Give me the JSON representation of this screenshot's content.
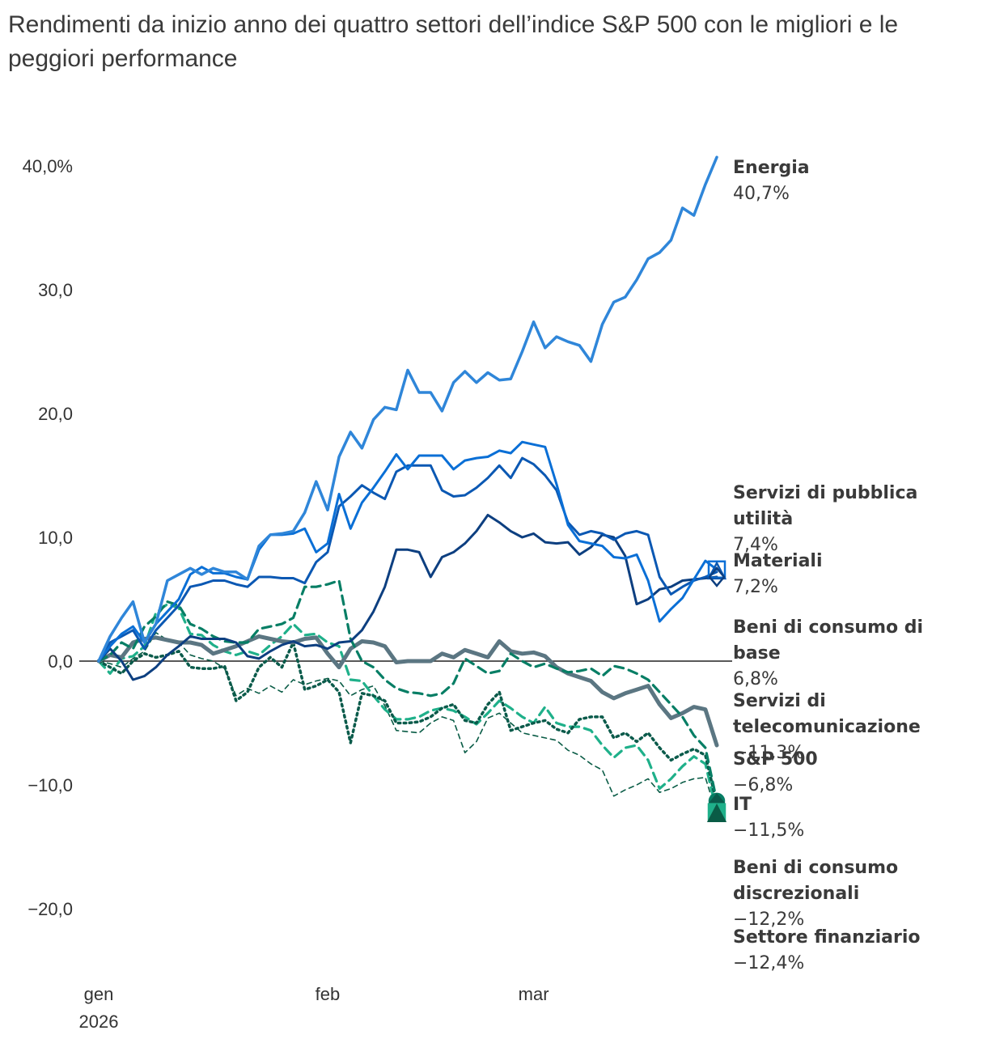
{
  "chart_data": {
    "type": "line",
    "title": "Rendimenti da inizio anno dei quattro settori dell’indice S&P 500 con le migliori e le peggiori performance",
    "xlabel": "",
    "ylabel": "",
    "x_ticks": [
      "gen",
      "feb",
      "mar"
    ],
    "x_year_label": "2026",
    "x_range": [
      0,
      54
    ],
    "x_tick_positions": [
      0,
      20,
      38
    ],
    "ylim": [
      -20,
      42
    ],
    "y_ticks": [
      40,
      30,
      20,
      10,
      0,
      -10,
      -20
    ],
    "y_tick_labels": [
      "40,0%",
      "30,0",
      "20,0",
      "10,0",
      "0,0",
      "−10,0",
      "−20,0"
    ],
    "zero_line": true,
    "grid": false,
    "legend": "direct labels at line ends (right)",
    "series": [
      {
        "name": "Energia",
        "end_label": "40,7%",
        "color": "#2f86d9",
        "dash": "solid",
        "width": 3.5,
        "values": [
          0,
          2,
          3.5,
          4.8,
          1.5,
          3,
          6.5,
          7,
          7.5,
          7,
          7.5,
          7.2,
          7.2,
          6.6,
          9.3,
          10.2,
          10.3,
          10.5,
          12,
          14.5,
          12.2,
          16.5,
          18.5,
          17.2,
          19.5,
          20.5,
          20.3,
          23.5,
          21.7,
          21.7,
          20.2,
          22.5,
          23.4,
          22.5,
          23.3,
          22.7,
          22.8,
          25,
          27.4,
          25.3,
          26.2,
          25.8,
          25.5,
          24.2,
          27.2,
          29,
          29.4,
          30.8,
          32.5,
          33,
          34,
          36.6,
          36,
          38.5,
          40.7
        ]
      },
      {
        "name": "Servizi di pubblica utilità",
        "end_label": "7,4%",
        "color": "#0a6fd6",
        "dash": "solid",
        "width": 3,
        "values": [
          0,
          1.2,
          2.2,
          2.8,
          1.5,
          3,
          4,
          5,
          7,
          7.6,
          7.1,
          7.1,
          6.8,
          6.6,
          9,
          10.2,
          10.2,
          10.3,
          10.7,
          8.8,
          9.5,
          13.5,
          10.7,
          12.8,
          14,
          15.3,
          16.7,
          15.5,
          16.6,
          16.6,
          16.6,
          15.5,
          16.2,
          16.4,
          16.5,
          17,
          16.8,
          17.7,
          17.5,
          17.3,
          14.3,
          11,
          9.7,
          9.5,
          9.3,
          8.4,
          8.3,
          8.6,
          6.5,
          3.2,
          4.2,
          5.1,
          6.6,
          8.1,
          7.4
        ]
      },
      {
        "name": "Materiali",
        "end_label": "7,2%",
        "color": "#0b58b3",
        "dash": "solid",
        "width": 3,
        "values": [
          0,
          1.5,
          2,
          2.5,
          1,
          2.5,
          3.5,
          4.5,
          6,
          6.2,
          6.5,
          6.5,
          6.2,
          6,
          6.8,
          6.8,
          6.7,
          6.7,
          6.3,
          8,
          8.8,
          12.5,
          13.3,
          14.2,
          13.6,
          13.1,
          15.3,
          15.8,
          15.8,
          15.8,
          13.8,
          13.3,
          13.4,
          14,
          14.8,
          15.8,
          14.8,
          16.4,
          15.9,
          15,
          13.8,
          11.2,
          10.2,
          10.5,
          10.3,
          9.8,
          10.3,
          10.5,
          10.2,
          6.8,
          5.4,
          6,
          6.5,
          6.8,
          7.2
        ]
      },
      {
        "name": "Beni di consumo di base",
        "end_label": "6,8%",
        "color": "#0d3f80",
        "dash": "solid",
        "width": 3,
        "values": [
          0,
          1,
          0,
          -1.5,
          -1.2,
          -0.5,
          0.5,
          1.2,
          2,
          1.8,
          1.8,
          1.8,
          1.5,
          0.4,
          0.2,
          0.8,
          1.3,
          1.6,
          1.2,
          1.3,
          1,
          1.5,
          1.6,
          2.5,
          4,
          6,
          9,
          9,
          8.8,
          6.8,
          8.4,
          8.8,
          9.5,
          10.5,
          11.8,
          11.2,
          10.5,
          10,
          10.3,
          9.6,
          9.5,
          9.6,
          8.6,
          9.2,
          10.2,
          10,
          8.5,
          4.6,
          5,
          5.8,
          6,
          6.5,
          6.6,
          6.7,
          6.8
        ]
      },
      {
        "name": "Servizi di telecomunicazione",
        "end_label": "−11,3%",
        "color": "#077e65",
        "dash": "dashed",
        "width": 3.2,
        "values": [
          0,
          0.5,
          1.5,
          1,
          2.8,
          3.6,
          4.8,
          4.5,
          3,
          2.6,
          2,
          1.6,
          1.5,
          1.5,
          2.6,
          2.8,
          3,
          3.5,
          6,
          6,
          6.2,
          6.5,
          1.8,
          0,
          -0.5,
          -1.5,
          -2.2,
          -2.5,
          -2.6,
          -2.8,
          -2.6,
          -1.8,
          0.2,
          -0.4,
          -1,
          -0.8,
          0.6,
          0,
          -0.5,
          -0.2,
          -0.6,
          -0.9,
          -0.8,
          -0.6,
          -1.2,
          -0.4,
          -0.6,
          -1,
          -1.5,
          -2.5,
          -3.5,
          -4.5,
          -6,
          -7,
          -11.3
        ]
      },
      {
        "name": "S&P 500",
        "end_label": "−6,8%",
        "color": "#5b7682",
        "dash": "solid",
        "width": 5,
        "values": [
          0,
          0.5,
          0.3,
          1.5,
          1.8,
          1.9,
          1.7,
          1.5,
          1.5,
          1.3,
          0.6,
          0.9,
          1.2,
          1.6,
          2,
          1.8,
          1.6,
          1.5,
          1.8,
          1.9,
          0.6,
          -0.5,
          1,
          1.6,
          1.5,
          1.2,
          -0.1,
          0,
          0,
          0,
          0.6,
          0.3,
          0.9,
          0.6,
          0.3,
          1.6,
          0.8,
          0.6,
          0.7,
          0.4,
          -0.5,
          -1,
          -1.3,
          -1.6,
          -2.5,
          -3,
          -2.6,
          -2.3,
          -2,
          -3.5,
          -4.6,
          -4.2,
          -3.7,
          -3.9,
          -6.8
        ]
      },
      {
        "name": "IT",
        "end_label": "−11,5%",
        "color": "#0b5b4b",
        "dash": "dotted",
        "width": 3.5,
        "values": [
          0,
          -0.5,
          -1,
          0,
          0.6,
          0.3,
          0.5,
          0.8,
          -0.5,
          -0.6,
          -0.6,
          -0.4,
          -3.2,
          -2.5,
          -0.5,
          0.3,
          -0.5,
          1.5,
          -2.3,
          -2,
          -1.5,
          -2.5,
          -6.6,
          -2.6,
          -2.8,
          -3.2,
          -5,
          -5,
          -4.9,
          -4.5,
          -3.8,
          -3.5,
          -4.8,
          -5,
          -3.5,
          -2.5,
          -5.6,
          -5.3,
          -5,
          -4.8,
          -5.5,
          -5.8,
          -4.7,
          -4.5,
          -4.5,
          -6.2,
          -5.8,
          -6.5,
          -5.8,
          -7,
          -8,
          -7.5,
          -7.1,
          -7.6,
          -11.5
        ]
      },
      {
        "name": "Beni di consumo discrezionali",
        "end_label": "−12,2%",
        "color": "#1fb08a",
        "dash": "dashed",
        "width": 3.2,
        "values": [
          0,
          -1,
          0.2,
          0.4,
          1.2,
          3.9,
          4.6,
          4.3,
          2.2,
          2.1,
          1.3,
          0.8,
          0.5,
          0.8,
          0.5,
          1.3,
          2,
          3,
          2.1,
          2.2,
          1.5,
          1.2,
          -1.5,
          -1.6,
          -2.8,
          -3.9,
          -4.7,
          -4.7,
          -4.5,
          -4,
          -3.8,
          -4,
          -4.5,
          -5.1,
          -4.2,
          -3.2,
          -3.8,
          -4.5,
          -5,
          -3.7,
          -5,
          -5.3,
          -5.3,
          -5.6,
          -6.8,
          -7.8,
          -7,
          -6.8,
          -8,
          -10.3,
          -9.5,
          -8.5,
          -7.7,
          -8.3,
          -12.2
        ]
      },
      {
        "name": "Settore finanziario",
        "end_label": "−12,4%",
        "color": "#0a5c46",
        "dash": "thin-dashed",
        "width": 1.6,
        "values": [
          0,
          -0.2,
          -0.5,
          0.2,
          0.8,
          2.3,
          1.7,
          1.5,
          0.5,
          0.2,
          0,
          -0.6,
          -2.8,
          -2.2,
          -2.6,
          -2,
          -2.5,
          -1.5,
          -1.9,
          -1.6,
          -1.4,
          -1.6,
          -2.8,
          -2.3,
          -2,
          -3.6,
          -5.6,
          -5.7,
          -5.8,
          -5,
          -4.5,
          -4.8,
          -7.4,
          -6.5,
          -4.6,
          -4.2,
          -5,
          -5.8,
          -6,
          -6.2,
          -6.4,
          -7.2,
          -7.6,
          -8.3,
          -8.8,
          -10.9,
          -10.4,
          -10,
          -9.5,
          -10.6,
          -10.3,
          -9.8,
          -9.5,
          -9.4,
          -12.4
        ]
      }
    ],
    "end_labels": [
      {
        "name_lines": [
          "Energia"
        ],
        "value": "40,7%"
      },
      {
        "name_lines": [
          "Servizi di pubblica",
          "utilità"
        ],
        "value": "7,4%"
      },
      {
        "name_lines": [
          "Materiali"
        ],
        "value": "7,2%"
      },
      {
        "name_lines": [
          "Beni di consumo di",
          "base"
        ],
        "value": "6,8%"
      },
      {
        "name_lines": [
          "Servizi di",
          "telecomunicazione"
        ],
        "value": "−11,3%"
      },
      {
        "name_lines": [
          "S&P 500"
        ],
        "value": "−6,8%"
      },
      {
        "name_lines": [
          "IT"
        ],
        "value": "−11,5%"
      },
      {
        "name_lines": [
          "Beni di consumo",
          "discrezionali"
        ],
        "value": "−12,2%"
      },
      {
        "name_lines": [
          "Settore finanziario"
        ],
        "value": "−12,4%"
      }
    ],
    "end_markers": [
      {
        "series": "Servizi di pubblica utilità",
        "shape": "square-outline"
      },
      {
        "series": "Materiali",
        "shape": "triangle-outline"
      },
      {
        "series": "Beni di consumo di base",
        "shape": "diamond-outline"
      },
      {
        "series": "Servizi di telecomunicazione",
        "shape": "circle-filled"
      },
      {
        "series": "IT",
        "shape": "diamond-filled"
      },
      {
        "series": "Beni di consumo discrezionali",
        "shape": "square-filled"
      },
      {
        "series": "Settore finanziario",
        "shape": "triangle-filled"
      }
    ]
  }
}
